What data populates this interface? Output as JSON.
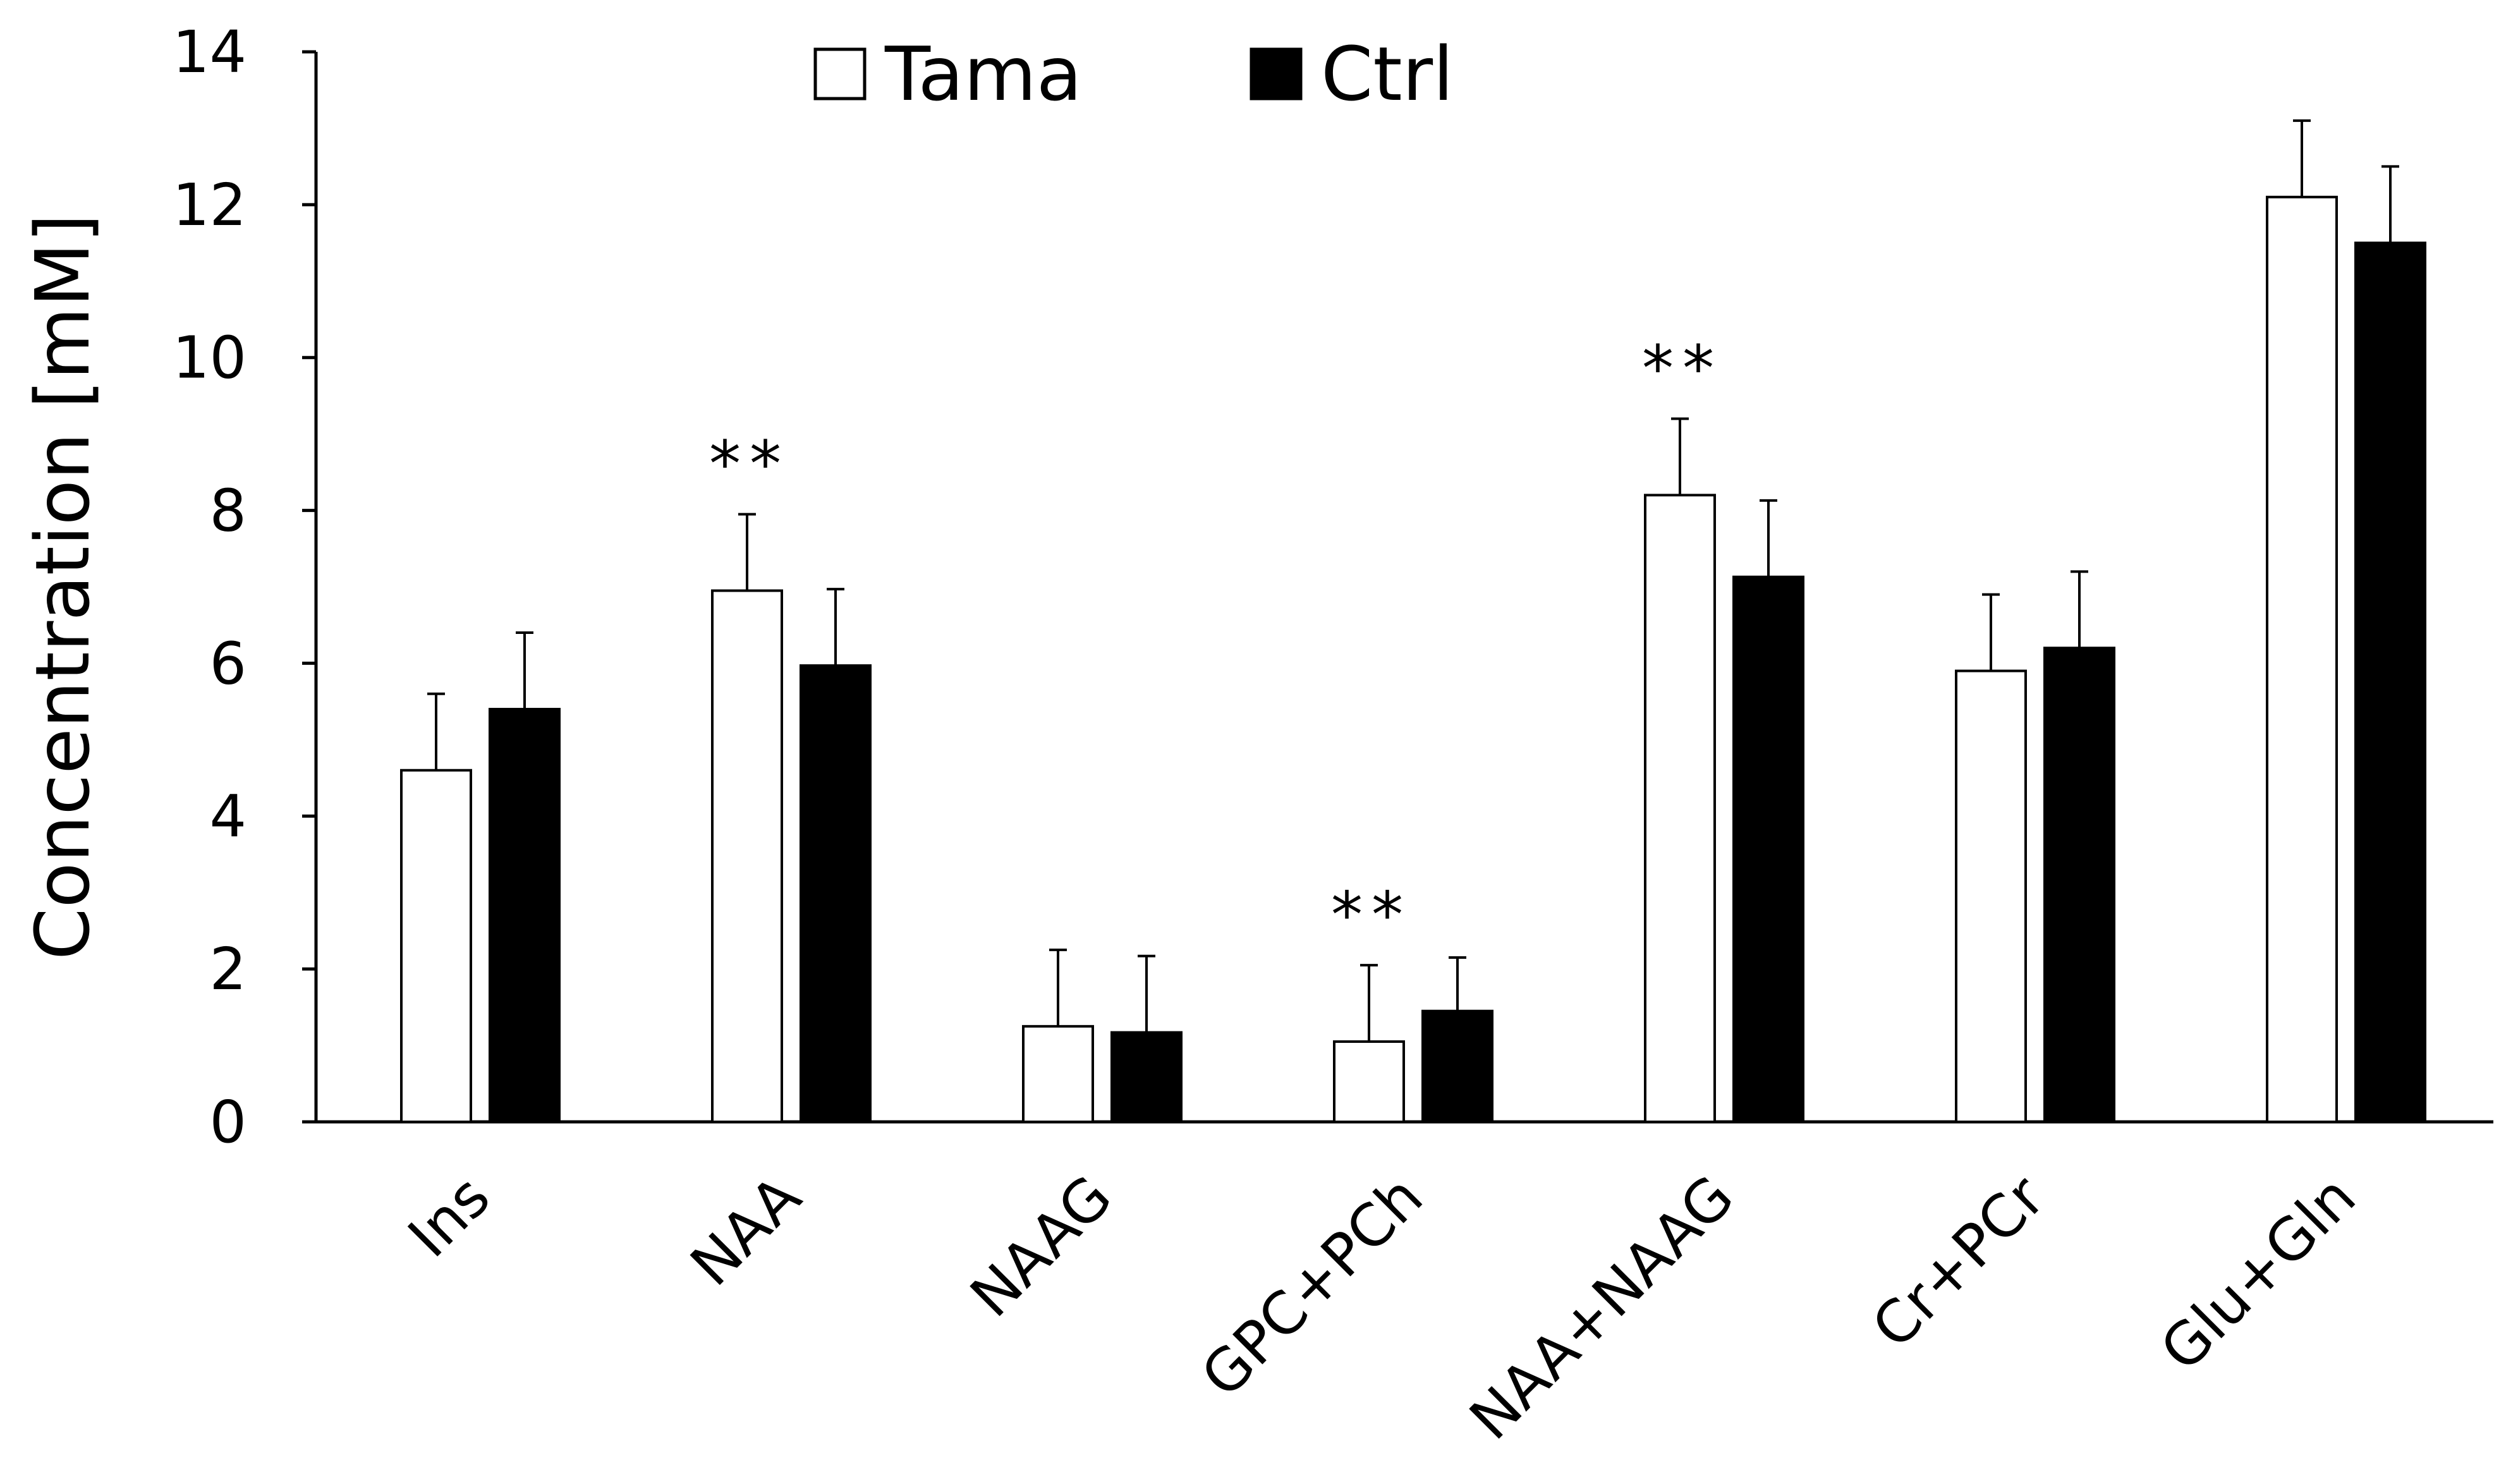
{
  "chart_data": {
    "type": "bar",
    "title": "",
    "xlabel": "",
    "ylabel": "Concentration  [mM]",
    "ylim": [
      0,
      14
    ],
    "yticks": [
      "0",
      "2",
      "4",
      "6",
      "8",
      "10",
      "12",
      "14"
    ],
    "categories": [
      "Ins",
      "NAA",
      "NAAG",
      "GPC+PCh",
      "NAA+NAAG",
      "Cr+PCr",
      "Glu+Gln"
    ],
    "series": [
      {
        "name": "Tama",
        "fill": "#ffffff",
        "values": [
          4.6,
          6.95,
          1.25,
          1.05,
          8.2,
          5.9,
          12.1
        ],
        "errors": [
          1.0,
          1.0,
          1.0,
          1.0,
          1.0,
          1.0,
          1.0
        ]
      },
      {
        "name": "Ctrl",
        "fill": "#000000",
        "values": [
          5.4,
          5.97,
          1.17,
          1.45,
          7.13,
          6.2,
          11.5
        ],
        "errors": [
          1.0,
          1.0,
          1.0,
          0.7,
          1.0,
          1.0,
          1.0
        ]
      }
    ],
    "significance": [
      {
        "category": "NAA",
        "label": "**"
      },
      {
        "category": "GPC+PCh",
        "label": "**"
      },
      {
        "category": "NAA+NAAG",
        "label": "**"
      }
    ],
    "legend": {
      "position": "top-center",
      "entries": [
        "Tama",
        "Ctrl"
      ]
    },
    "grid": false
  }
}
